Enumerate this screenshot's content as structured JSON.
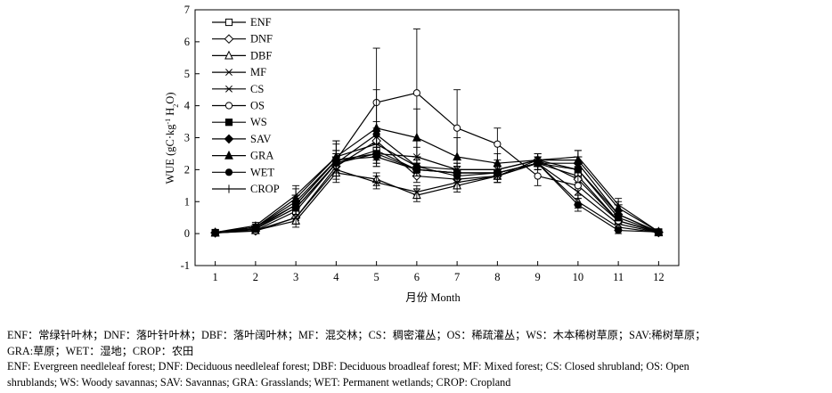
{
  "chart_data": {
    "type": "line",
    "title": "",
    "xlabel": "月份 Month",
    "ylabel": "WUE (gC·kg⁻¹ H₂O)",
    "ylabel_parts": [
      "WUE (gC·kg",
      "-1",
      " H",
      "2",
      "O)"
    ],
    "x": [
      1,
      2,
      3,
      4,
      5,
      6,
      7,
      8,
      9,
      10,
      11,
      12
    ],
    "xlim": [
      0.5,
      12.5
    ],
    "ylim": [
      -1,
      7
    ],
    "xticks": [
      1,
      2,
      3,
      4,
      5,
      6,
      7,
      8,
      9,
      10,
      11,
      12
    ],
    "yticks": [
      -1,
      0,
      1,
      2,
      3,
      4,
      5,
      6,
      7
    ],
    "grid": false,
    "legend": "top-left",
    "series": [
      {
        "name": "ENF",
        "marker": "square-open",
        "values": [
          0.03,
          0.1,
          0.7,
          2.2,
          2.6,
          2.0,
          1.9,
          1.9,
          2.2,
          1.8,
          0.4,
          0.04
        ],
        "err": [
          0.02,
          0.05,
          0.2,
          0.3,
          0.3,
          0.2,
          0.2,
          0.2,
          0.2,
          0.2,
          0.1,
          0.02
        ]
      },
      {
        "name": "DNF",
        "marker": "diamond-open",
        "values": [
          0.02,
          0.08,
          0.5,
          2.1,
          2.9,
          1.8,
          1.7,
          1.8,
          2.3,
          1.7,
          0.4,
          0.03
        ],
        "err": [
          0.02,
          0.05,
          0.2,
          0.3,
          0.3,
          0.2,
          0.2,
          0.2,
          0.2,
          0.2,
          0.1,
          0.02
        ]
      },
      {
        "name": "DBF",
        "marker": "triangle-open",
        "values": [
          0.02,
          0.1,
          0.4,
          1.9,
          1.7,
          1.2,
          1.5,
          1.8,
          2.2,
          1.0,
          0.2,
          0.03
        ],
        "err": [
          0.02,
          0.05,
          0.2,
          0.3,
          0.2,
          0.2,
          0.2,
          0.2,
          0.2,
          0.2,
          0.1,
          0.02
        ]
      },
      {
        "name": "MF",
        "marker": "x",
        "values": [
          0.02,
          0.1,
          0.5,
          2.0,
          1.6,
          1.3,
          1.6,
          1.8,
          2.2,
          1.3,
          0.3,
          0.03
        ],
        "err": [
          0.02,
          0.05,
          0.2,
          0.3,
          0.2,
          0.2,
          0.2,
          0.2,
          0.2,
          0.2,
          0.1,
          0.02
        ]
      },
      {
        "name": "CS",
        "marker": "asterisk",
        "values": [
          0.03,
          0.15,
          0.8,
          2.2,
          2.5,
          2.4,
          2.0,
          2.0,
          2.3,
          2.0,
          0.6,
          0.05
        ],
        "err": [
          0.02,
          0.05,
          0.2,
          0.3,
          0.3,
          0.3,
          0.2,
          0.2,
          0.2,
          0.2,
          0.1,
          0.02
        ]
      },
      {
        "name": "OS",
        "marker": "circle-open",
        "values": [
          0.04,
          0.2,
          0.9,
          2.3,
          4.1,
          4.4,
          3.3,
          2.8,
          1.8,
          1.5,
          0.4,
          0.05
        ],
        "err": [
          0.03,
          0.1,
          0.3,
          0.5,
          1.7,
          2.0,
          1.2,
          0.5,
          0.3,
          0.3,
          0.2,
          0.03
        ]
      },
      {
        "name": "WS",
        "marker": "square",
        "values": [
          0.03,
          0.15,
          0.9,
          2.3,
          2.5,
          2.0,
          1.9,
          1.9,
          2.2,
          2.0,
          0.5,
          0.05
        ],
        "err": [
          0.02,
          0.05,
          0.2,
          0.3,
          0.3,
          0.2,
          0.2,
          0.2,
          0.2,
          0.2,
          0.1,
          0.02
        ]
      },
      {
        "name": "SAV",
        "marker": "diamond",
        "values": [
          0.03,
          0.2,
          1.0,
          2.3,
          2.4,
          2.0,
          1.9,
          1.9,
          2.2,
          2.2,
          0.6,
          0.05
        ],
        "err": [
          0.02,
          0.05,
          0.2,
          0.3,
          0.3,
          0.2,
          0.2,
          0.2,
          0.2,
          0.2,
          0.1,
          0.02
        ]
      },
      {
        "name": "GRA",
        "marker": "triangle",
        "values": [
          0.04,
          0.2,
          1.1,
          2.4,
          3.3,
          3.0,
          2.4,
          2.2,
          2.3,
          2.3,
          0.8,
          0.06
        ],
        "err": [
          0.03,
          0.1,
          0.3,
          0.5,
          1.2,
          0.9,
          0.6,
          0.3,
          0.2,
          0.3,
          0.2,
          0.03
        ]
      },
      {
        "name": "WET",
        "marker": "circle",
        "values": [
          0.03,
          0.15,
          0.8,
          2.2,
          3.1,
          2.1,
          1.8,
          1.9,
          2.2,
          0.9,
          0.1,
          0.05
        ],
        "err": [
          0.02,
          0.05,
          0.2,
          0.3,
          0.4,
          0.2,
          0.2,
          0.2,
          0.2,
          0.2,
          0.1,
          0.02
        ]
      },
      {
        "name": "CROP",
        "marker": "plus",
        "values": [
          0.04,
          0.25,
          1.2,
          2.4,
          2.8,
          2.1,
          2.0,
          2.0,
          2.3,
          2.4,
          0.9,
          0.06
        ],
        "err": [
          0.03,
          0.1,
          0.3,
          0.5,
          0.5,
          0.3,
          0.2,
          0.2,
          0.2,
          0.2,
          0.2,
          0.03
        ]
      }
    ]
  },
  "caption": {
    "line1": "ENF：常绿针叶林；DNF：落叶针叶林；DBF：落叶阔叶林；MF：混交林；CS：稠密灌丛；OS：稀疏灌丛；WS：木本稀树草原；SAV:稀树草原；",
    "line2": "GRA:草原；WET：湿地；CROP：农田",
    "line3": "ENF: Evergreen needleleaf forest; DNF: Deciduous needleleaf forest; DBF: Deciduous broadleaf forest; MF: Mixed forest; CS: Closed shrubland; OS: Open",
    "line4": "shrublands; WS: Woody savannas; SAV: Savannas; GRA: Grasslands; WET: Permanent wetlands; CROP: Cropland"
  }
}
